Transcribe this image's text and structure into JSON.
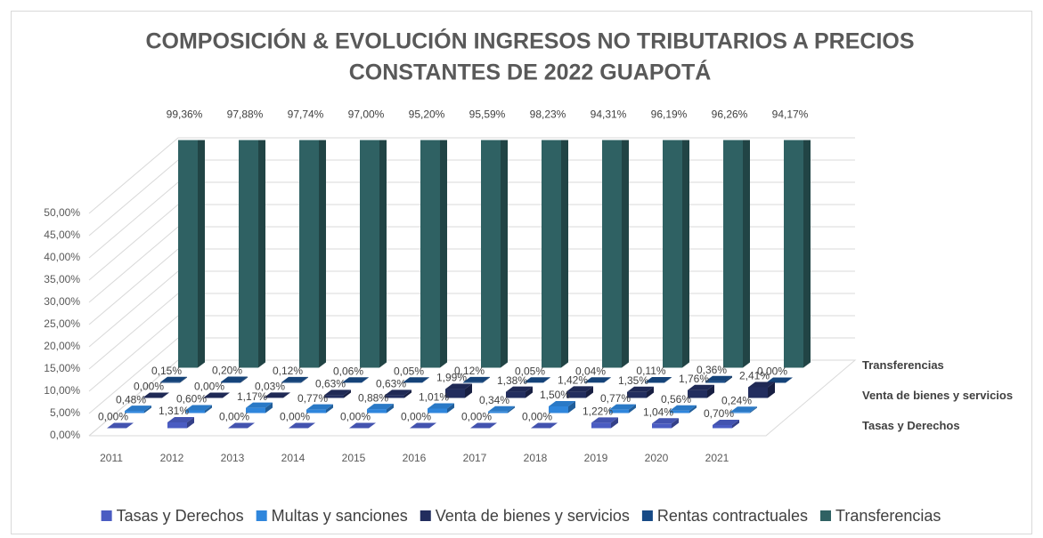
{
  "chart_data": {
    "type": "bar3d",
    "title": [
      "COMPOSICIÓN & EVOLUCIÓN INGRESOS NO TRIBUTARIOS A PRECIOS",
      "CONSTANTES DE 2022 GUAPOTÁ"
    ],
    "categories": [
      "2011",
      "2012",
      "2013",
      "2014",
      "2015",
      "2016",
      "2017",
      "2018",
      "2019",
      "2020",
      "2021"
    ],
    "series": [
      {
        "name": "Tasas y Derechos",
        "color": "#4a5cc2",
        "values": [
          0,
          1.31,
          0,
          0,
          0,
          0,
          0,
          0,
          1.22,
          1.04,
          0.7
        ],
        "value_labels": [
          "0,00%",
          "1,31%",
          "0,00%",
          "0,00%",
          "0,00%",
          "0,00%",
          "0,00%",
          "0,00%",
          "1,22%",
          "1,04%",
          "0,70%"
        ]
      },
      {
        "name": "Multas y sanciones",
        "color": "#2f86dc",
        "values": [
          0.48,
          0.6,
          1.17,
          0.77,
          0.88,
          1.01,
          0.34,
          1.5,
          0.77,
          0.56,
          0.24
        ],
        "value_labels": [
          "0,48%",
          "0,60%",
          "1,17%",
          "0,77%",
          "0,88%",
          "1,01%",
          "0,34%",
          "1,50%",
          "0,77%",
          "0,56%",
          "0,24%"
        ]
      },
      {
        "name": "Venta de bienes y servicios",
        "color": "#222d5e",
        "values": [
          0,
          0,
          0.03,
          0.63,
          0.63,
          1.99,
          1.38,
          1.42,
          1.35,
          1.76,
          2.41
        ],
        "value_labels": [
          "0,00%",
          "0,00%",
          "0,03%",
          "0,63%",
          "0,63%",
          "1,99%",
          "1,38%",
          "1,42%",
          "1,35%",
          "1,76%",
          "2,41%"
        ]
      },
      {
        "name": "Rentas contractuales",
        "color": "#174a86",
        "values": [
          0.15,
          0.2,
          0.12,
          0.06,
          0.05,
          0.12,
          0.05,
          0.04,
          0.11,
          0.36,
          0
        ],
        "value_labels": [
          "0,15%",
          "0,20%",
          "0,12%",
          "0,06%",
          "0,05%",
          "0,12%",
          "0,05%",
          "0,04%",
          "0,11%",
          "0,36%",
          "0,00%"
        ]
      },
      {
        "name": "Transferencias",
        "color": "#2f6163",
        "values": [
          99.36,
          97.88,
          97.74,
          97.0,
          95.2,
          95.59,
          98.23,
          94.31,
          96.19,
          96.26,
          94.17
        ],
        "value_labels": [
          "99,36%",
          "97,88%",
          "97,74%",
          "97,00%",
          "95,20%",
          "95,59%",
          "98,23%",
          "94,31%",
          "96,19%",
          "96,26%",
          "94,17%"
        ]
      }
    ],
    "row_labels": [
      {
        "series": 4,
        "label": "Transferencias"
      },
      {
        "series": 2,
        "label": "Venta de bienes y servicios"
      },
      {
        "series": 0,
        "label": "Tasas y Derechos"
      }
    ],
    "ylim": [
      0,
      50
    ],
    "yticks": [
      {
        "value": 0,
        "label": "0,00%"
      },
      {
        "value": 5,
        "label": "5,00%"
      },
      {
        "value": 10,
        "label": "10,00%"
      },
      {
        "value": 15,
        "label": "15,00%"
      },
      {
        "value": 20,
        "label": "20,00%"
      },
      {
        "value": 25,
        "label": "25,00%"
      },
      {
        "value": 30,
        "label": "30,00%"
      },
      {
        "value": 35,
        "label": "35,00%"
      },
      {
        "value": 40,
        "label": "40,00%"
      },
      {
        "value": 45,
        "label": "45,00%"
      },
      {
        "value": 50,
        "label": "50,00%"
      }
    ],
    "grid": true,
    "legend": "bottom"
  }
}
